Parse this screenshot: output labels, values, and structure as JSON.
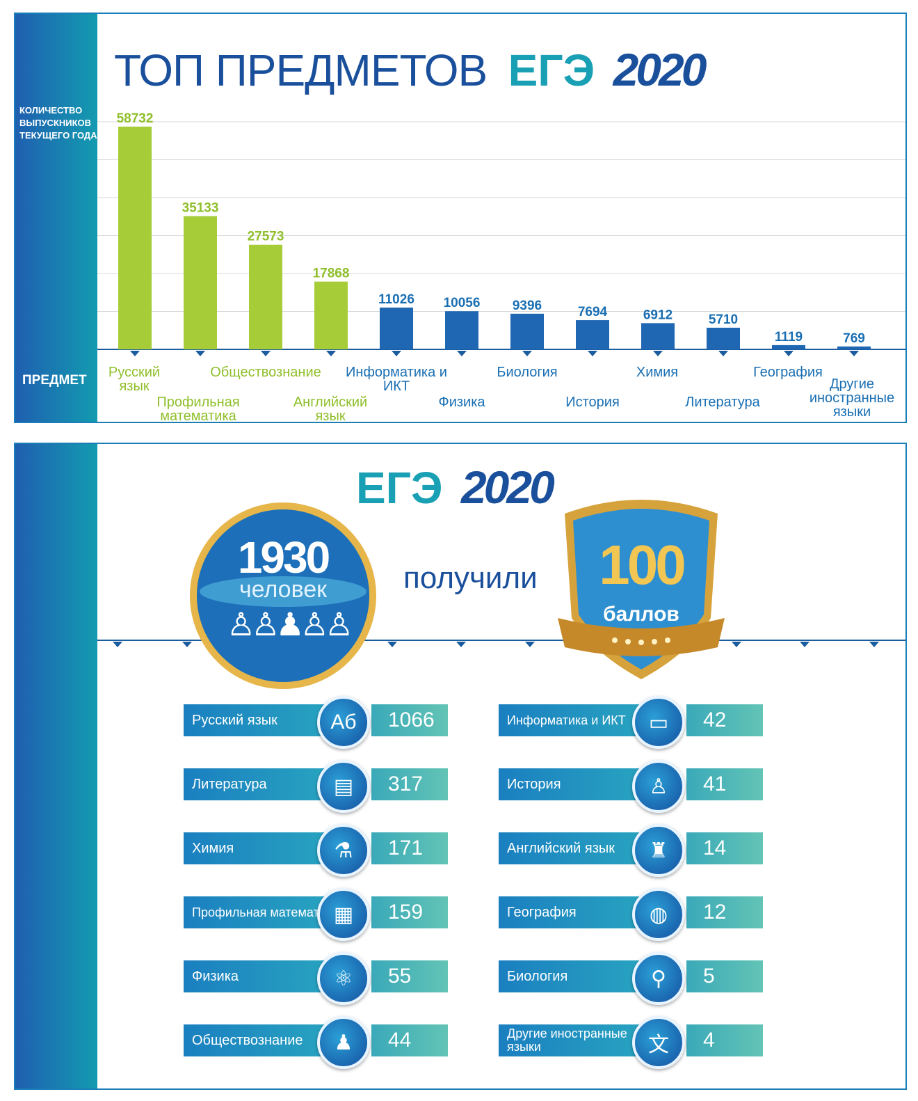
{
  "chart_data": [
    {
      "type": "bar",
      "title": "ТОП ПРЕДМЕТОВ",
      "title_accent": "ЕГЭ",
      "title_year": "2020",
      "ylabel": "КОЛИЧЕСТВО ВЫПУСКНИКОВ ТЕКУЩЕГО ГОДА",
      "xlabel": "ПРЕДМЕТ",
      "categories": [
        "Русский язык",
        "Профильная математика",
        "Обществознание",
        "Английский язык",
        "Информатика и ИКТ",
        "Физика",
        "Биология",
        "История",
        "Химия",
        "Литература",
        "География",
        "Другие иностранные языки"
      ],
      "values": [
        58732,
        35133,
        27573,
        17868,
        11026,
        10056,
        9396,
        7694,
        6912,
        5710,
        1119,
        769
      ],
      "value_labels": [
        "58732",
        "35133",
        "27573",
        "17868",
        "11026",
        "10056",
        "9396",
        "7694",
        "6912",
        "5710",
        "1119",
        "769"
      ],
      "colors": [
        "#a6cd38",
        "#a6cd38",
        "#a6cd38",
        "#a6cd38",
        "#1f67b3",
        "#1f67b3",
        "#1f67b3",
        "#1f67b3",
        "#1f67b3",
        "#1f67b3",
        "#1f67b3",
        "#1f67b3"
      ],
      "grid": true,
      "legend": "none"
    },
    {
      "type": "table",
      "title": "ЕГЭ",
      "title_year": "2020",
      "left_rows": [
        {
          "subject": "Русский язык",
          "count": "1066",
          "icon": "alphabet-icon"
        },
        {
          "subject": "Литература",
          "count": "317",
          "icon": "book-icon"
        },
        {
          "subject": "Химия",
          "count": "171",
          "icon": "flask-icon"
        },
        {
          "subject": "Профильная математика",
          "count": "159",
          "icon": "calculator-icon"
        },
        {
          "subject": "Физика",
          "count": "55",
          "icon": "atom-icon"
        },
        {
          "subject": "Обществознание",
          "count": "44",
          "icon": "people-icon"
        }
      ],
      "right_rows": [
        {
          "subject": "Информатика и ИКТ",
          "count": "42",
          "icon": "monitor-icon"
        },
        {
          "subject": "История",
          "count": "41",
          "icon": "bust-icon"
        },
        {
          "subject": "Английский язык",
          "count": "14",
          "icon": "big-ben-icon"
        },
        {
          "subject": "География",
          "count": "12",
          "icon": "globe-icon"
        },
        {
          "subject": "Биология",
          "count": "5",
          "icon": "microscope-icon"
        },
        {
          "subject": "Другие иностранные языки",
          "count": "4",
          "icon": "hieroglyph-icon"
        }
      ]
    }
  ],
  "summary": {
    "people_count": "1930",
    "people_word": "человек",
    "received": "получили",
    "score": "100",
    "score_word": "баллов"
  },
  "theme": {
    "green": "#a6cd38",
    "blue": "#1f67b3",
    "teal": "#19a0b4",
    "navy": "#1a4f9c",
    "gold": "#d9a53b"
  }
}
